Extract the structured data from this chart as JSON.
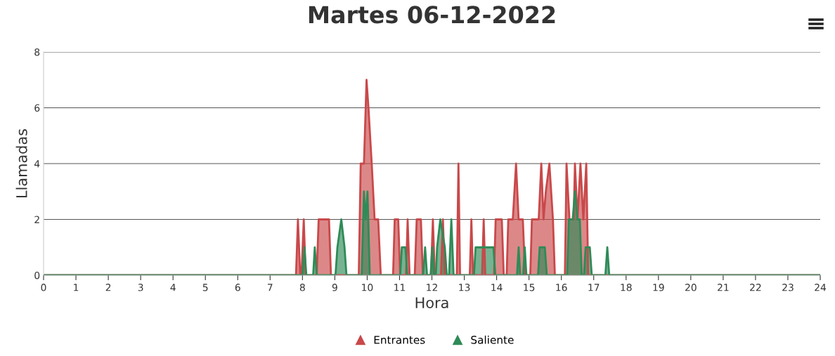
{
  "chart_data": {
    "type": "area",
    "title": "Martes 06-12-2022",
    "xlabel": "Hora",
    "ylabel": "Llamadas",
    "xlim": [
      0,
      24
    ],
    "xticks": [
      0,
      1,
      2,
      3,
      4,
      5,
      6,
      7,
      8,
      9,
      10,
      11,
      12,
      13,
      14,
      15,
      16,
      17,
      18,
      19,
      20,
      21,
      22,
      23,
      24
    ],
    "ylim": [
      0,
      8
    ],
    "yticks": [
      0,
      2,
      4,
      6,
      8
    ],
    "grid": "y",
    "legend": "bottom",
    "series": [
      {
        "name": "Entrantes",
        "color": "#c9484a",
        "x": [
          0,
          7.8,
          7.86,
          7.93,
          7.97,
          8.04,
          8.1,
          8.44,
          8.5,
          8.82,
          8.88,
          9.74,
          9.8,
          9.9,
          9.98,
          10.04,
          10.14,
          10.23,
          10.34,
          10.42,
          10.8,
          10.85,
          10.96,
          11.02,
          11.2,
          11.25,
          11.31,
          11.47,
          11.53,
          11.66,
          11.72,
          11.97,
          12.03,
          12.09,
          12.28,
          12.34,
          12.4,
          12.77,
          12.82,
          12.87,
          13.17,
          13.22,
          13.27,
          13.55,
          13.6,
          13.65,
          13.92,
          13.97,
          14.16,
          14.22,
          14.31,
          14.36,
          14.5,
          14.6,
          14.68,
          14.81,
          14.88,
          15.04,
          15.09,
          15.3,
          15.38,
          15.45,
          15.52,
          15.63,
          15.74,
          15.8,
          16.11,
          16.16,
          16.25,
          16.38,
          16.42,
          16.5,
          16.59,
          16.68,
          16.77,
          16.83,
          24
        ],
        "values": [
          0,
          0,
          2,
          0,
          0,
          2,
          0,
          0,
          2,
          2,
          0,
          0,
          4,
          4,
          7,
          6,
          4,
          2,
          2,
          0,
          0,
          2,
          2,
          0,
          0,
          2,
          0,
          0,
          2,
          2,
          0,
          0,
          2,
          0,
          0,
          2,
          0,
          0,
          4,
          0,
          0,
          2,
          0,
          0,
          2,
          0,
          0,
          2,
          2,
          0,
          0,
          2,
          2,
          4,
          2,
          2,
          0,
          0,
          2,
          2,
          4,
          2,
          3,
          4,
          2,
          0,
          0,
          4,
          2,
          2,
          4,
          2,
          4,
          2,
          4,
          0,
          0
        ]
      },
      {
        "name": "Saliente",
        "color": "#2e8b57",
        "x": [
          0,
          8.0,
          8.06,
          8.12,
          8.33,
          8.38,
          8.44,
          9.02,
          9.08,
          9.2,
          9.3,
          9.36,
          9.83,
          9.9,
          9.95,
          10.01,
          10.08,
          11.02,
          11.07,
          11.18,
          11.24,
          11.73,
          11.79,
          11.85,
          11.96,
          12.01,
          12.06,
          12.12,
          12.16,
          12.26,
          12.4,
          12.46,
          12.53,
          12.6,
          12.67,
          13.3,
          13.35,
          13.9,
          13.96,
          14.63,
          14.68,
          14.73,
          14.82,
          14.87,
          14.92,
          15.28,
          15.33,
          15.49,
          15.55,
          16.18,
          16.23,
          16.35,
          16.42,
          16.5,
          16.57,
          16.63,
          16.7,
          16.75,
          16.88,
          16.94,
          17.36,
          17.42,
          17.48,
          24
        ],
        "values": [
          0,
          0,
          1,
          0,
          0,
          1,
          0,
          0,
          1,
          2,
          1,
          0,
          0,
          3,
          2,
          3,
          0,
          0,
          1,
          1,
          0,
          0,
          1,
          0,
          0,
          1,
          0,
          0,
          1,
          2,
          1,
          0,
          0,
          2,
          0,
          0,
          1,
          1,
          0,
          0,
          1,
          0,
          0,
          1,
          0,
          0,
          1,
          1,
          0,
          0,
          2,
          2,
          3,
          2,
          2,
          0,
          0,
          1,
          1,
          0,
          0,
          1,
          0,
          0
        ]
      }
    ]
  }
}
